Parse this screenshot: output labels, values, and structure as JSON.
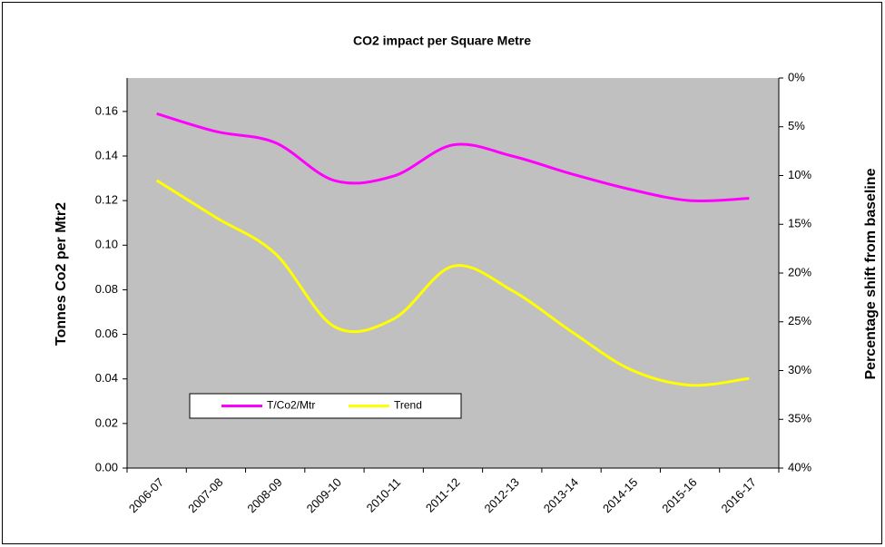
{
  "chart_data": {
    "type": "line",
    "title": "CO2 impact per Square Metre",
    "ylabel": "Tonnes Co2 per Mtr2",
    "y2label": "Percentage shift from baseline",
    "categories": [
      "2006-07",
      "2007-08",
      "2008-09",
      "2009-10",
      "2010-11",
      "2011-12",
      "2012-13",
      "2013-14",
      "2014-15",
      "2015-16",
      "2016-17"
    ],
    "series": [
      {
        "name": "T/Co2/Mtr",
        "color": "#ff00ff",
        "values": [
          0.159,
          0.151,
          0.146,
          0.129,
          0.131,
          0.145,
          0.14,
          0.132,
          0.125,
          0.12,
          0.121
        ]
      },
      {
        "name": "Trend",
        "color": "#ffff00",
        "axis": "y2",
        "values": [
          10.5,
          14.3,
          18.0,
          25.5,
          24.7,
          19.3,
          21.8,
          26.0,
          29.9,
          31.5,
          30.8
        ]
      }
    ],
    "ylim": [
      0,
      0.175
    ],
    "yticks": [
      {
        "value": 0,
        "label": "0.00"
      },
      {
        "value": 0.02,
        "label": "0.02"
      },
      {
        "value": 0.04,
        "label": "0.04"
      },
      {
        "value": 0.06,
        "label": "0.06"
      },
      {
        "value": 0.08,
        "label": "0.08"
      },
      {
        "value": 0.1,
        "label": "0.10"
      },
      {
        "value": 0.12,
        "label": "0.12"
      },
      {
        "value": 0.14,
        "label": "0.14"
      },
      {
        "value": 0.16,
        "label": "0.16"
      }
    ],
    "y2lim": [
      40,
      0
    ],
    "y2ticks": [
      {
        "value": 0,
        "label": "0%"
      },
      {
        "value": 5,
        "label": "5%"
      },
      {
        "value": 10,
        "label": "10%"
      },
      {
        "value": 15,
        "label": "15%"
      },
      {
        "value": 20,
        "label": "20%"
      },
      {
        "value": 25,
        "label": "25%"
      },
      {
        "value": 30,
        "label": "30%"
      },
      {
        "value": 35,
        "label": "35%"
      },
      {
        "value": 40,
        "label": "40%"
      }
    ],
    "plot_background": "#c0c0c0",
    "legend": "lower left"
  }
}
